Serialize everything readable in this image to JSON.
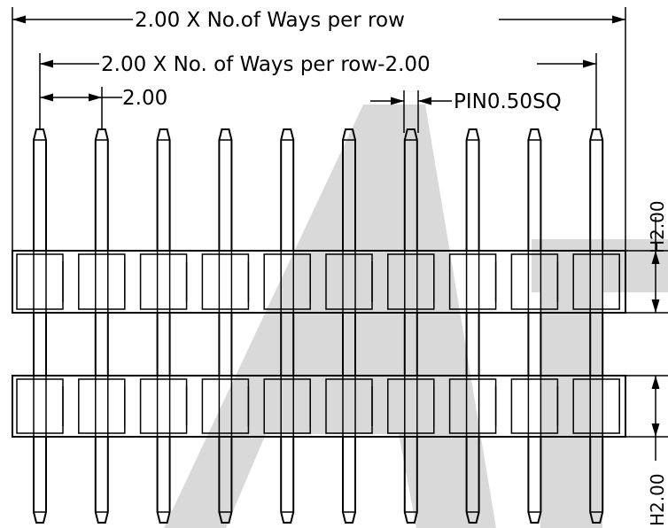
{
  "dimensions": {
    "overall_length": "2.00 X No.of Ways per row",
    "pin_span": "2.00 X No. of Ways per row-2.00",
    "pitch": "2.00",
    "pin_size": "PIN0.50SQ",
    "height_upper": "H2.00",
    "height_lower": "H2.00"
  },
  "watermark": {
    "text": "Aa",
    "color": "#d9d9d9"
  },
  "pin_count_per_row": 10,
  "colors": {
    "line": "#000000",
    "background": "#ffffff",
    "watermark": "#d9d9d9"
  }
}
